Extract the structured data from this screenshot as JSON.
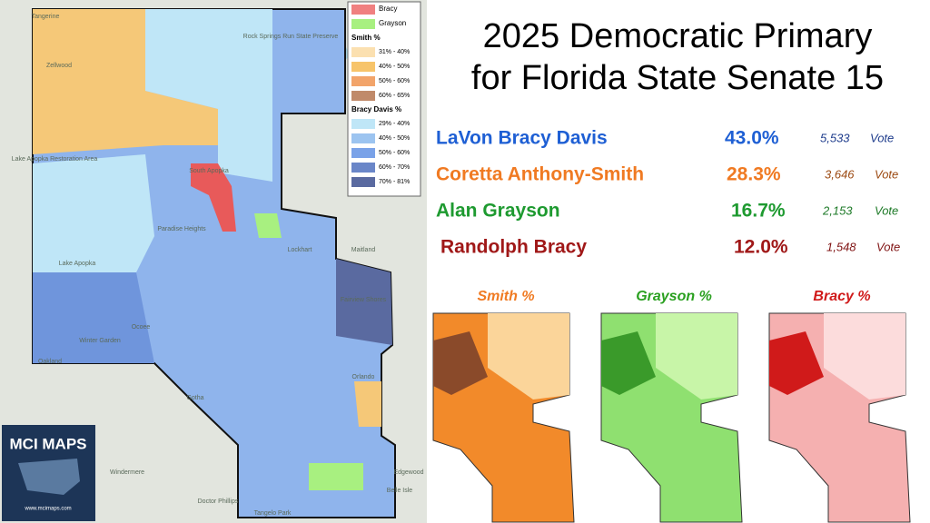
{
  "title": [
    "2025 Democratic Primary",
    "for Florida State Senate 15"
  ],
  "candidates": [
    {
      "name": "LaVon Bracy Davis",
      "percent": "43.0%",
      "votes": "5,533",
      "unit": "Vote",
      "color": "#1e5fd4",
      "vote_color": "#1e3c8c"
    },
    {
      "name": "Coretta Anthony-Smith",
      "percent": "28.3%",
      "votes": "3,646",
      "unit": "Vote",
      "color": "#f07a22",
      "vote_color": "#9c4a12"
    },
    {
      "name": "Alan Grayson",
      "percent": "16.7%",
      "votes": "2,153",
      "unit": "Vote",
      "color": "#1e9a30",
      "vote_color": "#1e7a28"
    },
    {
      "name": "Randolph Bracy",
      "percent": "12.0%",
      "votes": "1,548",
      "unit": "Vote",
      "color": "#a01818",
      "vote_color": "#801414"
    }
  ],
  "legend": {
    "winners": [
      {
        "label": "Bracy",
        "color": "#f08080"
      },
      {
        "label": "Grayson",
        "color": "#a8f080"
      }
    ],
    "groups": [
      {
        "title": "Smith %",
        "ranges": [
          {
            "label": "31% - 40%",
            "color": "#fbe0b0"
          },
          {
            "label": "40% - 50%",
            "color": "#f7c46a"
          },
          {
            "label": "50% - 60%",
            "color": "#f2a46a"
          },
          {
            "label": "60% - 65%",
            "color": "#c08a6a"
          }
        ]
      },
      {
        "title": "Bracy Davis %",
        "ranges": [
          {
            "label": "29% - 40%",
            "color": "#bfe6f7"
          },
          {
            "label": "40% - 50%",
            "color": "#9cc4f0"
          },
          {
            "label": "50% - 60%",
            "color": "#7aa2e8"
          },
          {
            "label": "60% - 70%",
            "color": "#6a86c8"
          },
          {
            "label": "70% - 81%",
            "color": "#5a6aa0"
          }
        ]
      }
    ]
  },
  "mini_maps": [
    "Smith %",
    "Grayson %",
    "Bracy  %"
  ],
  "map_labels": [
    "Tangerine",
    "Zellwood",
    "Rock Springs Run State Preserve",
    "Lake Apopka Restoration Area",
    "South Apopka",
    "Paradise Heights",
    "Lake Apopka",
    "Lockhart",
    "Maitland",
    "Fairview Shores",
    "Ocoee",
    "Winter Garden",
    "Oakland",
    "Orlando",
    "Gotha",
    "Windermere",
    "Doctor Phillips",
    "Tangelo Park",
    "Edgewood",
    "Belle Isle"
  ],
  "logo": {
    "title": "MCI MAPS",
    "url": "www.mcimaps.com"
  }
}
